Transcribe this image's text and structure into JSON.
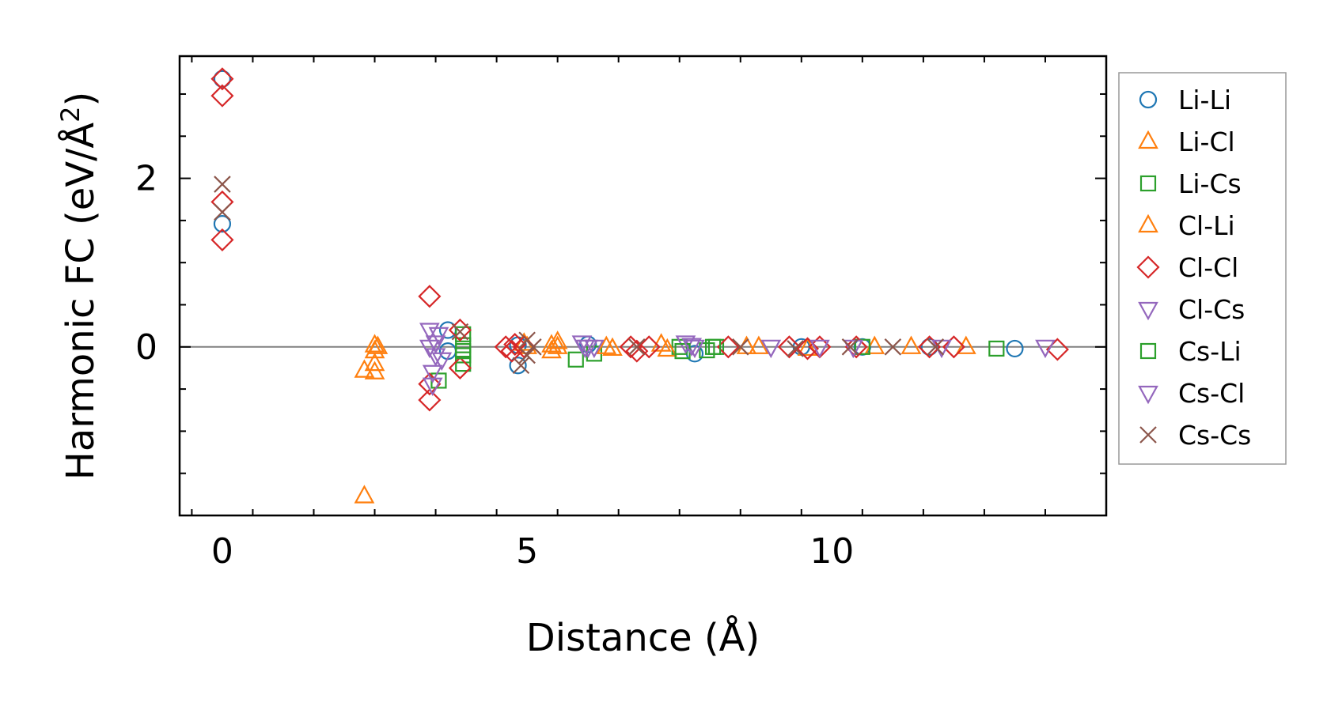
{
  "chart_data": {
    "type": "scatter",
    "xlabel": "Distance (Å)",
    "ylabel_main": "Harmonic FC (eV/Å",
    "ylabel_sup": "2",
    "ylabel_close": ")",
    "xlim": [
      -0.7,
      14.5
    ],
    "ylim": [
      -2.0,
      3.45
    ],
    "xticks": [
      0,
      5,
      10
    ],
    "xtick_labels": [
      "0",
      "5",
      "10"
    ],
    "yticks": [
      0,
      2
    ],
    "ytick_labels": [
      "0",
      "2"
    ],
    "zero_line": true,
    "grid": false,
    "legend_position": "right",
    "series": [
      {
        "name": "Li-Li",
        "marker": "circle",
        "color": "#1f77b4",
        "points": [
          [
            0,
            3.18
          ],
          [
            0,
            1.46
          ],
          [
            3.7,
            0.2
          ],
          [
            3.7,
            -0.05
          ],
          [
            4.85,
            -0.22
          ],
          [
            4.85,
            0.02
          ],
          [
            6.0,
            0.03
          ],
          [
            7.75,
            -0.08
          ],
          [
            9.5,
            0.0
          ],
          [
            10.5,
            0.0
          ],
          [
            11.6,
            0.0
          ],
          [
            13.0,
            -0.02
          ]
        ]
      },
      {
        "name": "Li-Cl",
        "marker": "triangle-up",
        "color": "#ff7f0e",
        "points": [
          [
            2.33,
            -0.28
          ],
          [
            2.5,
            -0.3
          ],
          [
            2.5,
            -0.2
          ],
          [
            2.5,
            -0.05
          ],
          [
            2.5,
            0.02
          ],
          [
            2.33,
            -1.77
          ],
          [
            5.0,
            0.0
          ],
          [
            5.4,
            -0.05
          ],
          [
            5.4,
            0.02
          ],
          [
            5.5,
            0.06
          ],
          [
            6.4,
            -0.02
          ],
          [
            7.2,
            0.03
          ],
          [
            8.8,
            0.0
          ],
          [
            9.6,
            -0.02
          ],
          [
            10.7,
            0.0
          ],
          [
            11.3,
            0.0
          ],
          [
            12.2,
            0.0
          ]
        ]
      },
      {
        "name": "Li-Cs",
        "marker": "square",
        "color": "#2ca02c",
        "points": [
          [
            3.55,
            -0.4
          ],
          [
            3.95,
            0.15
          ],
          [
            3.95,
            -0.1
          ],
          [
            3.95,
            -0.2
          ],
          [
            3.95,
            0.02
          ],
          [
            5.8,
            -0.15
          ],
          [
            6.1,
            -0.08
          ],
          [
            7.5,
            0.0
          ],
          [
            7.95,
            -0.04
          ],
          [
            8.1,
            0.0
          ],
          [
            10.5,
            0.0
          ],
          [
            12.7,
            -0.02
          ]
        ]
      },
      {
        "name": "Cl-Li",
        "marker": "triangle-up",
        "color": "#ff7f0e",
        "points": [
          [
            2.55,
            0.0
          ],
          [
            4.95,
            0.04
          ],
          [
            5.5,
            0.0
          ],
          [
            6.3,
            0.0
          ],
          [
            7.3,
            -0.03
          ],
          [
            8.6,
            0.0
          ]
        ]
      },
      {
        "name": "Cl-Cl",
        "marker": "diamond",
        "color": "#d62728",
        "points": [
          [
            0,
            3.18
          ],
          [
            0,
            2.98
          ],
          [
            0,
            1.72
          ],
          [
            0,
            1.27
          ],
          [
            3.4,
            0.6
          ],
          [
            3.4,
            -0.63
          ],
          [
            3.4,
            -0.44
          ],
          [
            3.9,
            0.2
          ],
          [
            3.9,
            -0.25
          ],
          [
            4.65,
            0.0
          ],
          [
            4.75,
            -0.05
          ],
          [
            4.8,
            0.03
          ],
          [
            4.95,
            0.0
          ],
          [
            6.7,
            0.0
          ],
          [
            6.8,
            -0.05
          ],
          [
            7.0,
            0.0
          ],
          [
            8.3,
            0.0
          ],
          [
            9.3,
            0.0
          ],
          [
            9.6,
            -0.02
          ],
          [
            9.8,
            0.0
          ],
          [
            10.4,
            0.0
          ],
          [
            11.6,
            0.0
          ],
          [
            12.0,
            0.0
          ],
          [
            13.7,
            -0.03
          ]
        ]
      },
      {
        "name": "Cl-Cs",
        "marker": "triangle-down",
        "color": "#9467bd",
        "points": [
          [
            3.4,
            0.2
          ],
          [
            3.4,
            0.0
          ],
          [
            3.45,
            -0.3
          ],
          [
            3.5,
            -0.1
          ],
          [
            3.55,
            0.15
          ],
          [
            3.6,
            -0.15
          ],
          [
            5.9,
            0.05
          ],
          [
            6.0,
            0.0
          ],
          [
            6.1,
            0.0
          ],
          [
            7.6,
            0.05
          ],
          [
            7.75,
            0.0
          ],
          [
            9.0,
            0.0
          ],
          [
            9.8,
            0.0
          ],
          [
            11.8,
            0.0
          ],
          [
            13.5,
            0.0
          ]
        ]
      },
      {
        "name": "Cs-Li",
        "marker": "square",
        "color": "#2ca02c",
        "points": [
          [
            3.95,
            -0.05
          ],
          [
            7.55,
            -0.05
          ],
          [
            8.05,
            0.0
          ]
        ]
      },
      {
        "name": "Cs-Cl",
        "marker": "triangle-down",
        "color": "#9467bd",
        "points": [
          [
            3.45,
            -0.45
          ],
          [
            3.5,
            0.05
          ],
          [
            5.95,
            0.0
          ],
          [
            7.7,
            0.02
          ],
          [
            10.35,
            0.0
          ]
        ]
      },
      {
        "name": "Cs-Cs",
        "marker": "x",
        "color": "#8c564b",
        "points": [
          [
            0,
            1.93
          ],
          [
            0,
            1.6
          ],
          [
            3.9,
            0.18
          ],
          [
            5.0,
            0.08
          ],
          [
            5.0,
            -0.1
          ],
          [
            4.9,
            -0.22
          ],
          [
            5.1,
            0.0
          ],
          [
            6.8,
            0.0
          ],
          [
            8.5,
            0.0
          ],
          [
            9.4,
            -0.02
          ],
          [
            10.3,
            0.0
          ],
          [
            11.0,
            0.0
          ],
          [
            11.7,
            0.0
          ]
        ]
      }
    ]
  }
}
